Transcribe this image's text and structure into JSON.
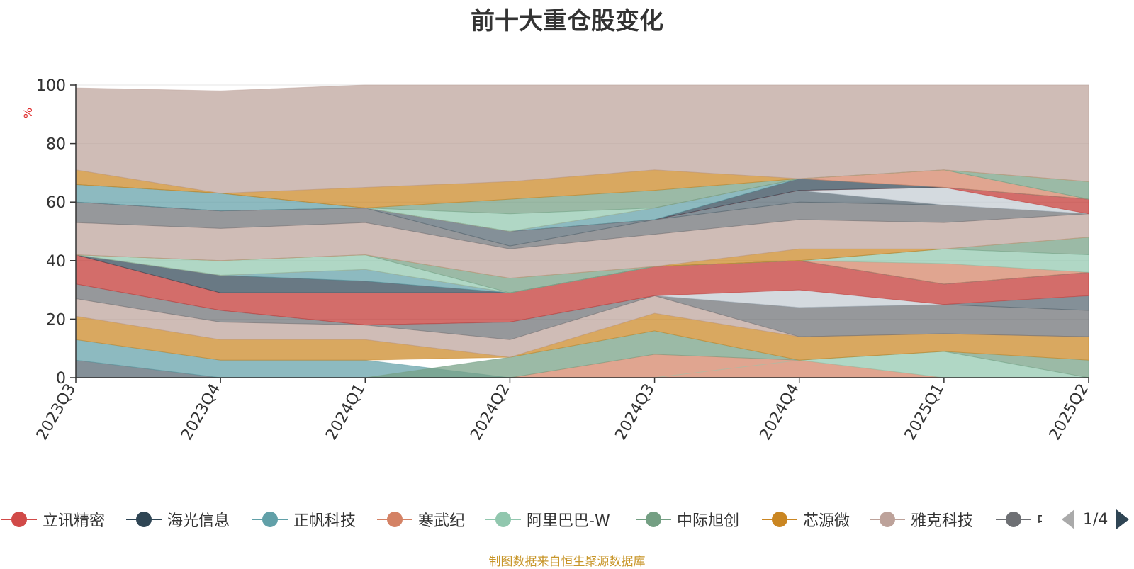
{
  "title": "前十大重仓股变化",
  "footer": "制图数据来自恒生聚源数据库",
  "pager": {
    "text": "1/4"
  },
  "chart_data": {
    "type": "area",
    "stacked": true,
    "title": "前十大重仓股变化",
    "ylabel": "%",
    "ylim": [
      0,
      100
    ],
    "yticks": [
      0,
      20,
      40,
      60,
      80,
      100
    ],
    "grid": true,
    "legend_position": "bottom",
    "categories": [
      "2023Q3",
      "2023Q4",
      "2024Q1",
      "2024Q2",
      "2024Q3",
      "2024Q4",
      "2025Q1",
      "2025Q2"
    ],
    "series": [
      {
        "name": "立讯精密",
        "color": "#d14a48",
        "values": [
          6,
          0,
          0,
          0,
          8,
          0,
          0,
          0
        ]
      },
      {
        "name": "海光信息",
        "color": "#2f4554",
        "values": [
          0,
          0,
          0,
          0,
          0,
          0,
          0,
          0
        ]
      },
      {
        "name": "正帆科技",
        "color": "#61a0a8",
        "values": [
          7,
          6,
          6,
          0,
          0,
          0,
          0,
          0
        ]
      },
      {
        "name": "寒武纪",
        "color": "#d48265",
        "values": [
          0,
          0,
          0,
          0,
          0,
          6,
          0,
          0
        ]
      },
      {
        "name": "阿里巴巴-W",
        "color": "#91c7ae",
        "values": [
          0,
          0,
          0,
          0,
          0,
          0,
          9,
          0
        ]
      },
      {
        "name": "中际旭创",
        "color": "#749f83",
        "values": [
          0,
          0,
          0,
          7,
          8,
          0,
          0,
          6
        ]
      },
      {
        "name": "芯源微",
        "color": "#ca8622",
        "values": [
          8,
          7,
          6,
          0,
          6,
          8,
          6,
          7
        ]
      },
      {
        "name": "雅克科技",
        "color": "#bda29a",
        "values": [
          6,
          6,
          6,
          6,
          6,
          0,
          0,
          0
        ]
      },
      {
        "name": "中",
        "color": "#6e7074",
        "values": [
          5,
          4,
          0,
          6,
          0,
          10,
          10,
          9
        ]
      }
    ]
  },
  "bands": [
    {
      "c": "#546570",
      "lo": [
        0,
        0,
        0,
        0,
        0,
        0,
        0,
        0
      ],
      "hi": [
        6,
        0,
        0,
        0,
        0,
        0,
        0,
        0
      ]
    },
    {
      "c": "#61a0a8",
      "lo": [
        6,
        0,
        0,
        0,
        0,
        0,
        0,
        0
      ],
      "hi": [
        13,
        6,
        6,
        0,
        0,
        0,
        0,
        0
      ]
    },
    {
      "c": "#d48265",
      "lo": [
        0,
        0,
        0,
        0,
        0,
        0,
        0,
        0
      ],
      "hi": [
        0,
        0,
        0,
        0,
        8,
        6,
        0,
        0
      ]
    },
    {
      "c": "#91c7ae",
      "lo": [
        0,
        0,
        0,
        0,
        0,
        6,
        0,
        0
      ],
      "hi": [
        0,
        0,
        0,
        0,
        0,
        6,
        9,
        0
      ]
    },
    {
      "c": "#749f83",
      "lo": [
        0,
        0,
        0,
        0,
        8,
        6,
        9,
        0
      ],
      "hi": [
        0,
        0,
        0,
        7,
        16,
        6,
        9,
        6
      ]
    },
    {
      "c": "#ca8622",
      "lo": [
        13,
        6,
        6,
        7,
        16,
        6,
        9,
        6
      ],
      "hi": [
        21,
        13,
        13,
        7,
        22,
        14,
        15,
        14
      ]
    },
    {
      "c": "#bda29a",
      "lo": [
        21,
        13,
        13,
        7,
        22,
        14,
        15,
        14
      ],
      "hi": [
        27,
        19,
        18,
        13,
        28,
        14,
        15,
        14
      ]
    },
    {
      "c": "#6e7074",
      "lo": [
        27,
        19,
        18,
        13,
        28,
        14,
        15,
        14
      ],
      "hi": [
        32,
        23,
        18,
        19,
        28,
        24,
        25,
        23
      ]
    },
    {
      "c": "#546570",
      "lo": [
        32,
        23,
        18,
        19,
        28,
        24,
        25,
        23
      ],
      "hi": [
        32,
        23,
        18,
        19,
        28,
        24,
        25,
        28
      ]
    },
    {
      "c": "#c4ccd3",
      "lo": [
        32,
        23,
        18,
        19,
        28,
        24,
        25,
        28
      ],
      "hi": [
        32,
        23,
        18,
        19,
        28,
        30,
        25,
        28
      ]
    },
    {
      "c": "#c23531",
      "lo": [
        32,
        23,
        18,
        19,
        28,
        30,
        25,
        28
      ],
      "hi": [
        42,
        29,
        29,
        29,
        38,
        40,
        32,
        36
      ]
    },
    {
      "c": "#2f4554",
      "lo": [
        42,
        29,
        29,
        29,
        38,
        40,
        32,
        36
      ],
      "hi": [
        42,
        35,
        33,
        29,
        38,
        40,
        32,
        36
      ]
    },
    {
      "c": "#61a0a8",
      "lo": [
        42,
        35,
        33,
        29,
        38,
        40,
        32,
        36
      ],
      "hi": [
        42,
        35,
        37,
        29,
        38,
        40,
        32,
        36
      ]
    },
    {
      "c": "#d48265",
      "lo": [
        42,
        35,
        37,
        29,
        38,
        40,
        32,
        36
      ],
      "hi": [
        42,
        35,
        37,
        29,
        38,
        40,
        39,
        36
      ]
    },
    {
      "c": "#91c7ae",
      "lo": [
        42,
        35,
        37,
        29,
        38,
        40,
        39,
        36
      ],
      "hi": [
        42,
        40,
        42,
        29,
        38,
        40,
        44,
        42
      ]
    },
    {
      "c": "#749f83",
      "lo": [
        42,
        40,
        42,
        29,
        38,
        40,
        44,
        42
      ],
      "hi": [
        42,
        40,
        42,
        34,
        38,
        40,
        44,
        48
      ]
    },
    {
      "c": "#ca8622",
      "lo": [
        42,
        40,
        42,
        34,
        38,
        40,
        44,
        48
      ],
      "hi": [
        42,
        40,
        42,
        34,
        38,
        44,
        44,
        48
      ]
    },
    {
      "c": "#bda29a",
      "lo": [
        42,
        40,
        42,
        34,
        38,
        44,
        44,
        48
      ],
      "hi": [
        53,
        51,
        53,
        44,
        49,
        54,
        53,
        56
      ]
    },
    {
      "c": "#6e7074",
      "lo": [
        53,
        51,
        53,
        44,
        49,
        54,
        53,
        56
      ],
      "hi": [
        60,
        57,
        58,
        45,
        54,
        60,
        59,
        56
      ]
    },
    {
      "c": "#546570",
      "lo": [
        60,
        57,
        58,
        45,
        54,
        60,
        59,
        56
      ],
      "hi": [
        60,
        57,
        58,
        50,
        54,
        64,
        59,
        56
      ]
    },
    {
      "c": "#c4ccd3",
      "lo": [
        60,
        57,
        58,
        50,
        54,
        64,
        59,
        56
      ],
      "hi": [
        60,
        57,
        58,
        50,
        54,
        64,
        65,
        56
      ]
    },
    {
      "c": "#c23531",
      "lo": [
        60,
        57,
        58,
        50,
        54,
        64,
        65,
        56
      ],
      "hi": [
        60,
        57,
        58,
        50,
        54,
        64,
        65,
        61
      ]
    },
    {
      "c": "#2f4554",
      "lo": [
        60,
        57,
        58,
        50,
        54,
        64,
        65,
        61
      ],
      "hi": [
        60,
        57,
        58,
        50,
        54,
        68,
        65,
        61
      ]
    },
    {
      "c": "#61a0a8",
      "lo": [
        60,
        57,
        58,
        50,
        54,
        68,
        65,
        61
      ],
      "hi": [
        66,
        63,
        58,
        50,
        58,
        68,
        65,
        61
      ]
    },
    {
      "c": "#d48265",
      "lo": [
        66,
        63,
        58,
        50,
        58,
        68,
        65,
        61
      ],
      "hi": [
        66,
        63,
        58,
        50,
        58,
        68,
        71,
        61
      ]
    },
    {
      "c": "#91c7ae",
      "lo": [
        66,
        63,
        58,
        50,
        58,
        68,
        71,
        61
      ],
      "hi": [
        66,
        63,
        58,
        56,
        58,
        68,
        71,
        61
      ]
    },
    {
      "c": "#749f83",
      "lo": [
        66,
        63,
        58,
        56,
        58,
        68,
        71,
        61
      ],
      "hi": [
        66,
        63,
        58,
        61,
        64,
        68,
        71,
        67
      ]
    },
    {
      "c": "#ca8622",
      "lo": [
        66,
        63,
        58,
        61,
        64,
        68,
        71,
        67
      ],
      "hi": [
        71,
        63,
        65,
        67,
        71,
        68,
        71,
        67
      ]
    },
    {
      "c": "#bda29a",
      "lo": [
        71,
        63,
        65,
        67,
        71,
        68,
        71,
        67
      ],
      "hi": [
        99,
        98,
        100,
        100,
        100,
        100,
        100,
        100
      ]
    }
  ]
}
